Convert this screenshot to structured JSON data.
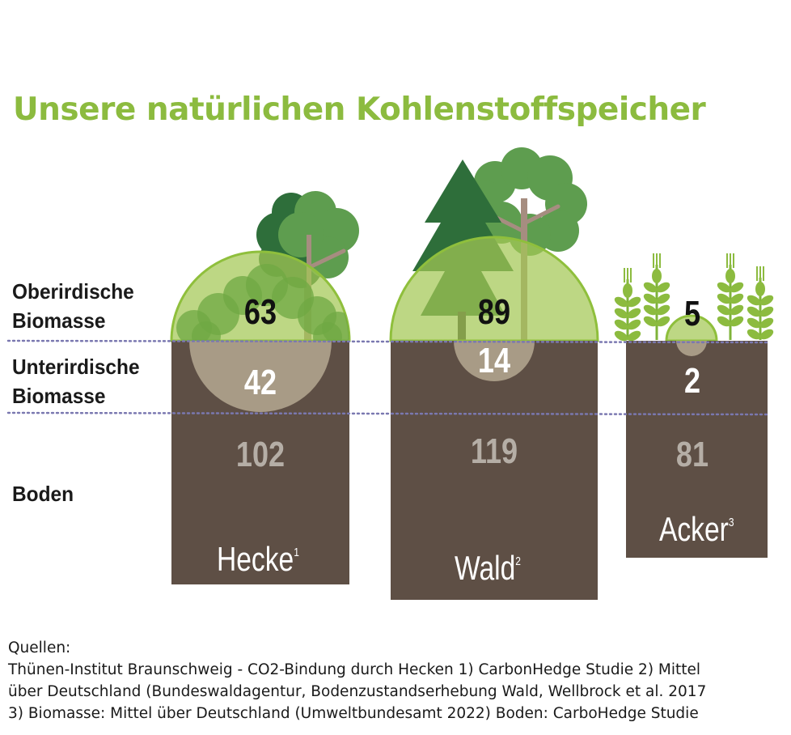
{
  "title": "Unsere natürlichen Kohlenstoffspeicher",
  "colors": {
    "title": "#8cbb3f",
    "soil": "#5e4f45",
    "light_green": "#a3c854",
    "dark_green": "#2e6e3a",
    "mid_green": "#5e9d4f",
    "root_circle": "#a89b86",
    "soil_value": "#b5aea6",
    "divider": "#7a78b0"
  },
  "row_labels": {
    "above": [
      "Oberirdische",
      "Biomasse"
    ],
    "below": [
      "Unterirdische",
      "Biomasse"
    ],
    "soil": [
      "Boden"
    ]
  },
  "columns": [
    {
      "name": "Hecke",
      "footnote": "1",
      "above": "63",
      "below": "42",
      "soil": "102",
      "icon": "deciduous-tree-icon"
    },
    {
      "name": "Wald",
      "footnote": "2",
      "above": "89",
      "below": "14",
      "soil": "119",
      "icon": "conifer-tree-icon"
    },
    {
      "name": "Acker",
      "footnote": "3",
      "above": "5",
      "below": "2",
      "soil": "81",
      "icon": "wheat-icon"
    }
  ],
  "sources": {
    "heading": "Quellen:",
    "lines": [
      "Thünen-Institut Braunschweig - CO2-Bindung durch Hecken   1) CarbonHedge Studie  2) Mittel",
      "über Deutschland (Bundeswaldagentur, Bodenzustandserhebung Wald, Wellbrock et al. 2017",
      "3) Biomasse: Mittel über Deutschland (Umweltbundesamt 2022) Boden: CarboHedge Studie"
    ]
  }
}
